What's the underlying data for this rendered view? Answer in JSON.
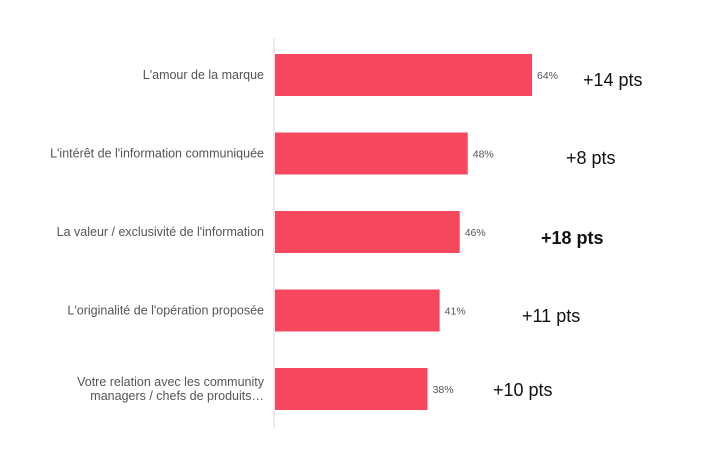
{
  "chart_data": {
    "type": "bar",
    "orientation": "horizontal",
    "categories": [
      [
        "L'amour de la marque"
      ],
      [
        "L'intérêt de l'information communiquée"
      ],
      [
        "La valeur / exclusivité de l'information"
      ],
      [
        "L'originalité de l'opération proposée"
      ],
      [
        "Votre relation avec les community",
        "managers / chefs de produits…"
      ]
    ],
    "values": [
      64,
      48,
      46,
      41,
      38
    ],
    "value_labels": [
      "64%",
      "48%",
      "46%",
      "41%",
      "38%"
    ],
    "annotations": [
      "+14 pts",
      "+8 pts",
      "+18 pts",
      "+11 pts",
      "+10 pts"
    ],
    "annotation_bold": [
      false,
      false,
      true,
      false,
      false
    ],
    "xlim": [
      0,
      64
    ],
    "bar_color": "#f5485f",
    "axis_color": "#d9d9d9",
    "grid": false,
    "legend": false
  }
}
